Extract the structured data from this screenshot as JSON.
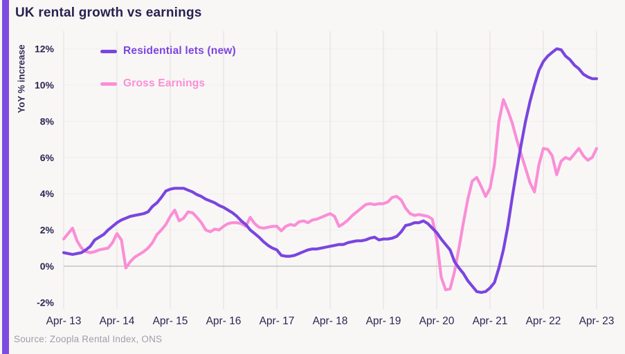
{
  "page": {
    "title": "UK rental growth vs earnings",
    "source": "Source: Zoopla Rental Index, ONS"
  },
  "colors": {
    "accent_bar": "#7f4ce0",
    "residential": "#7a45e0",
    "earnings": "#fa8ed6",
    "title_text": "#282250",
    "axis_text": "#2a2550",
    "muted_text": "#a09da8",
    "gridline": "#e5e2e1",
    "faint_gridline": "#f0eeed",
    "zero_line": "#bcb9b9",
    "background": "#f9f7f6"
  },
  "legend": [
    {
      "label": "Residential lets (new)",
      "color_key": "residential"
    },
    {
      "label": "Gross Earnings",
      "color_key": "earnings"
    }
  ],
  "chart_data": {
    "type": "line",
    "title": "UK rental growth vs earnings",
    "xlabel": "",
    "ylabel": "YoY % increase",
    "x_unit": "month",
    "x_start": "Apr-2013",
    "x_end": "Apr-2023",
    "x_tick_labels": [
      "Apr- 13",
      "Apr- 14",
      "Apr- 15",
      "Apr- 16",
      "Apr- 17",
      "Apr- 18",
      "Apr- 19",
      "Apr- 20",
      "Apr- 21",
      "Apr- 22",
      "Apr- 23"
    ],
    "y_ticks": [
      -2,
      0,
      2,
      4,
      6,
      8,
      10,
      12
    ],
    "y_tick_labels": [
      "-2%",
      "0%",
      "2%",
      "4%",
      "6%",
      "8%",
      "10%",
      "12%"
    ],
    "ylim": [
      -2.9,
      13.0
    ],
    "grid": "vertical-yearly, zero-line",
    "legend_position": "top-left-inside",
    "series": [
      {
        "name": "Residential lets (new)",
        "color_key": "residential",
        "values": [
          0.75,
          0.7,
          0.65,
          0.7,
          0.75,
          0.9,
          1.1,
          1.45,
          1.6,
          1.75,
          2.0,
          2.2,
          2.4,
          2.55,
          2.65,
          2.75,
          2.8,
          2.85,
          2.9,
          3.0,
          3.3,
          3.5,
          3.8,
          4.15,
          4.25,
          4.3,
          4.3,
          4.3,
          4.2,
          4.1,
          3.95,
          3.85,
          3.7,
          3.6,
          3.5,
          3.35,
          3.25,
          3.1,
          2.95,
          2.75,
          2.5,
          2.3,
          2.0,
          1.8,
          1.6,
          1.35,
          1.15,
          1.0,
          0.9,
          0.6,
          0.55,
          0.55,
          0.6,
          0.7,
          0.8,
          0.9,
          0.95,
          0.95,
          1.0,
          1.05,
          1.1,
          1.15,
          1.2,
          1.2,
          1.3,
          1.35,
          1.4,
          1.4,
          1.45,
          1.55,
          1.6,
          1.45,
          1.5,
          1.5,
          1.55,
          1.65,
          1.9,
          2.25,
          2.3,
          2.4,
          2.4,
          2.5,
          2.35,
          2.1,
          1.85,
          1.5,
          1.2,
          0.9,
          0.25,
          -0.1,
          -0.4,
          -0.8,
          -1.1,
          -1.4,
          -1.45,
          -1.4,
          -1.2,
          -0.9,
          -0.1,
          0.9,
          2.2,
          3.8,
          5.3,
          6.7,
          8.0,
          9.1,
          10.0,
          10.8,
          11.3,
          11.6,
          11.8,
          12.0,
          11.95,
          11.6,
          11.4,
          11.1,
          10.9,
          10.6,
          10.45,
          10.35,
          10.35
        ]
      },
      {
        "name": "Gross Earnings",
        "color_key": "earnings",
        "values": [
          1.5,
          1.8,
          2.1,
          1.4,
          1.0,
          0.8,
          0.75,
          0.8,
          0.9,
          0.95,
          1.0,
          1.3,
          1.8,
          1.45,
          -0.1,
          0.25,
          0.5,
          0.65,
          0.8,
          1.0,
          1.3,
          1.75,
          2.0,
          2.3,
          2.75,
          3.1,
          2.5,
          2.65,
          3.0,
          2.95,
          2.7,
          2.4,
          2.0,
          1.9,
          2.05,
          2.0,
          2.2,
          2.35,
          2.4,
          2.4,
          2.35,
          2.2,
          2.7,
          2.35,
          2.15,
          2.1,
          2.15,
          2.2,
          2.2,
          1.95,
          2.2,
          2.3,
          2.25,
          2.45,
          2.5,
          2.4,
          2.55,
          2.6,
          2.7,
          2.8,
          2.9,
          2.75,
          2.2,
          2.35,
          2.55,
          2.8,
          3.0,
          3.2,
          3.4,
          3.45,
          3.4,
          3.45,
          3.45,
          3.55,
          3.8,
          3.85,
          3.65,
          3.2,
          2.9,
          2.8,
          2.85,
          2.8,
          2.75,
          2.6,
          1.5,
          -0.6,
          -1.3,
          -1.25,
          -0.3,
          1.0,
          2.4,
          3.7,
          4.7,
          4.9,
          4.4,
          3.85,
          4.3,
          5.6,
          8.0,
          9.2,
          8.6,
          7.9,
          7.0,
          6.2,
          5.4,
          4.6,
          4.1,
          5.6,
          6.5,
          6.45,
          6.1,
          5.05,
          5.8,
          6.0,
          5.9,
          6.2,
          6.5,
          6.1,
          5.85,
          6.0,
          6.5
        ]
      }
    ]
  }
}
